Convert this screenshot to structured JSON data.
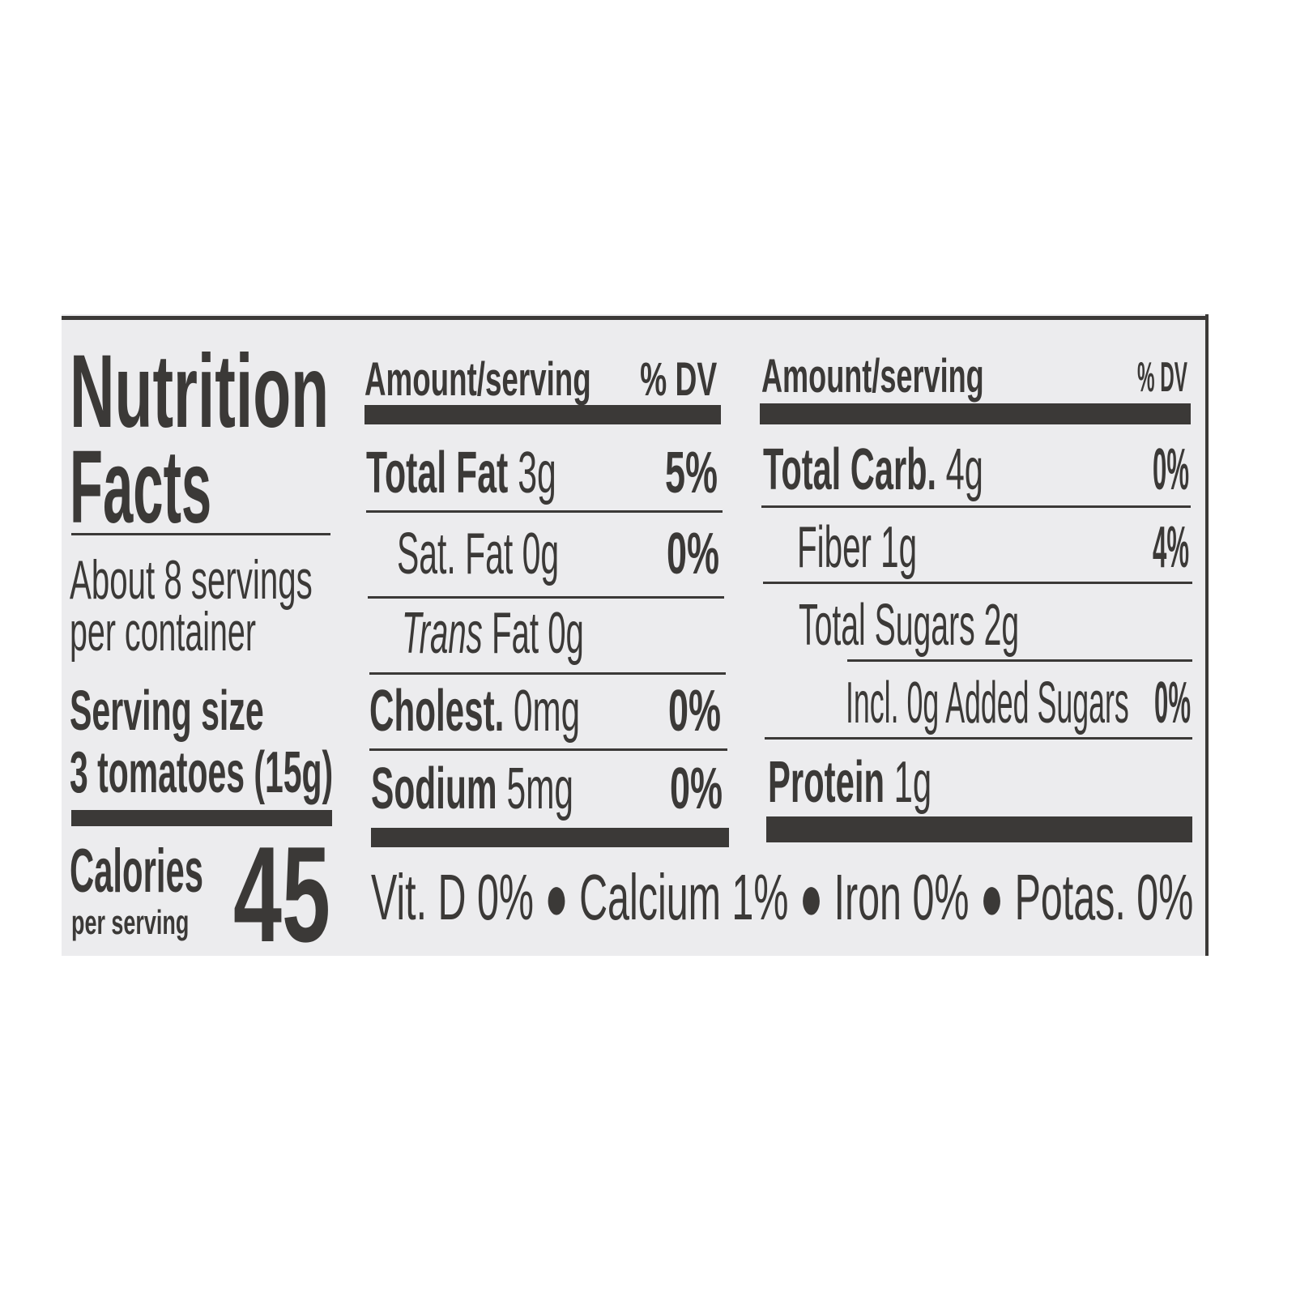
{
  "title_line1": "Nutrition",
  "title_line2": "Facts",
  "servings_line1": "About 8 servings",
  "servings_line2": "per container",
  "serving_size_label": "Serving size",
  "serving_size_value": "3 tomatoes (15g)",
  "calories_label": "Calories",
  "calories_sub": "per serving",
  "calories_value": "45",
  "left_table": {
    "header_amount": "Amount/serving",
    "header_dv": "% DV",
    "rows": [
      {
        "name": "Total Fat",
        "amount": "3g",
        "dv": "5%"
      },
      {
        "name": "Sat. Fat",
        "amount": "0g",
        "dv": "0%"
      },
      {
        "name": "Trans",
        "name_suffix": "Fat",
        "amount": "0g",
        "dv": ""
      },
      {
        "name": "Cholest.",
        "amount": "0mg",
        "dv": "0%"
      },
      {
        "name": "Sodium",
        "amount": "5mg",
        "dv": "0%"
      }
    ]
  },
  "right_table": {
    "header_amount": "Amount/serving",
    "header_dv": "% DV",
    "rows": [
      {
        "name": "Total Carb.",
        "amount": "4g",
        "dv": "0%"
      },
      {
        "name": "Fiber",
        "amount": "1g",
        "dv": "4%"
      },
      {
        "name": "Total Sugars",
        "amount": "2g",
        "dv": ""
      },
      {
        "name": "Incl. 0g Added Sugars",
        "amount": "",
        "dv": "0%"
      },
      {
        "name": "Protein",
        "amount": "1g",
        "dv": ""
      }
    ]
  },
  "vitamins": "Vit. D 0% ● Calcium 1% ● Iron 0% ● Potas. 0%",
  "colors": {
    "ink": "#3b3937",
    "label_bg": "#ececee"
  }
}
